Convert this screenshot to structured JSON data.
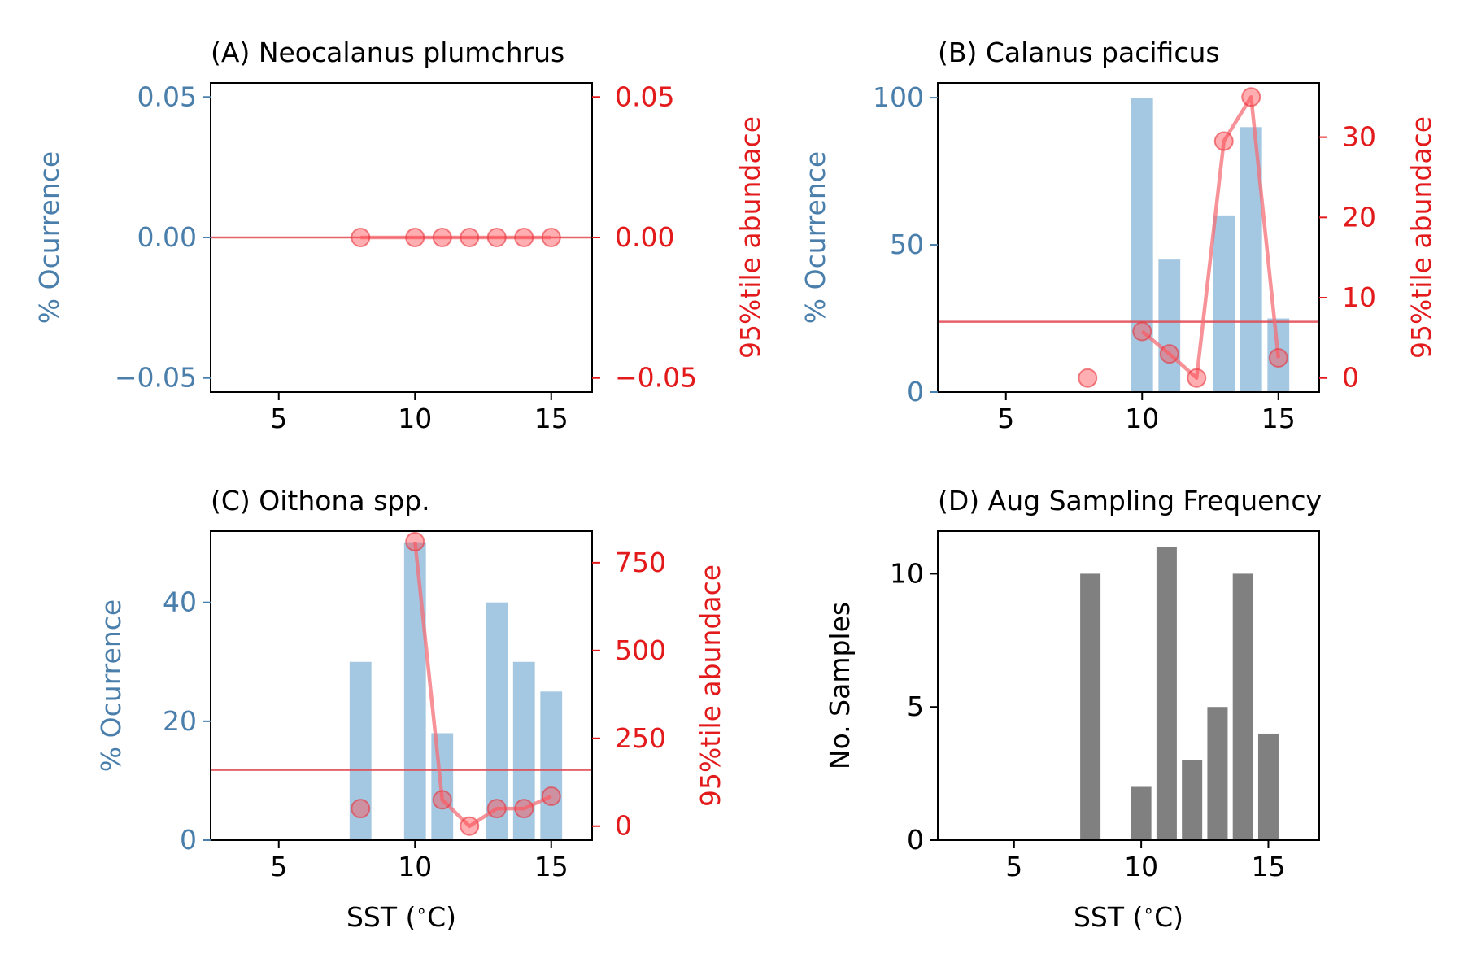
{
  "colors": {
    "left_axis": "#4a7eab",
    "right_axis": "#e31a1c",
    "bars": "#7fb0d5",
    "line": "#f46d75",
    "hline": "#e0474f",
    "gray_bars": "#808080",
    "frame": "#000000"
  },
  "chart_data": [
    {
      "type": "bar",
      "title": "(A) Neocalanus plumchrus",
      "ylabel_left": "% Ocurrence",
      "ylabel_right": "95%tile abundace",
      "xlabel": "",
      "xlim": [
        2.5,
        16.5
      ],
      "xticks": [
        5,
        10,
        15
      ],
      "ylim_left": [
        -0.055,
        0.055
      ],
      "yticks_left": [
        -0.05,
        0.0,
        0.05
      ],
      "ytick_labels_left": [
        "−0.05",
        "0.00",
        "0.05"
      ],
      "ylim_right": [
        -0.055,
        0.055
      ],
      "yticks_right": [
        -0.05,
        0.0,
        0.05
      ],
      "ytick_labels_right": [
        "−0.05",
        "0.00",
        "0.05"
      ],
      "bars": [],
      "line_x": [
        8,
        10,
        11,
        12,
        13,
        14,
        15
      ],
      "line_y": [
        0,
        0,
        0,
        0,
        0,
        0,
        0
      ],
      "hline_right": 0
    },
    {
      "type": "bar",
      "title": "(B) Calanus pacificus",
      "ylabel_left": "% Ocurrence",
      "ylabel_right": "95%tile abundace",
      "xlabel": "",
      "xlim": [
        2.5,
        16.5
      ],
      "xticks": [
        5,
        10,
        15
      ],
      "ylim_left": [
        0,
        105
      ],
      "yticks_left": [
        0,
        50,
        100
      ],
      "ytick_labels_left": [
        "0",
        "50",
        "100"
      ],
      "ylim_right": [
        -1.75,
        36.75
      ],
      "yticks_right": [
        0,
        10,
        20,
        30
      ],
      "ytick_labels_right": [
        "0",
        "10",
        "20",
        "30"
      ],
      "bars": [
        {
          "x": 10,
          "value": 100
        },
        {
          "x": 11,
          "value": 45
        },
        {
          "x": 13,
          "value": 60
        },
        {
          "x": 14,
          "value": 90
        },
        {
          "x": 15,
          "value": 25
        }
      ],
      "line_x": [
        8,
        10,
        11,
        12,
        13,
        14,
        15
      ],
      "line_y": [
        0,
        5.8,
        3,
        0,
        29.5,
        35,
        2.5
      ],
      "line_segments": [
        [
          1,
          2,
          3,
          4,
          5,
          6
        ]
      ],
      "hline_right": 7
    },
    {
      "type": "bar",
      "title": "(C) Oithona spp.",
      "ylabel_left": "% Ocurrence",
      "ylabel_right": "95%tile abundace",
      "xlabel": "SST ($^\\circ$C)",
      "xlim": [
        2.5,
        16.5
      ],
      "xticks": [
        5,
        10,
        15
      ],
      "ylim_left": [
        0,
        52
      ],
      "yticks_left": [
        0,
        20,
        40
      ],
      "ytick_labels_left": [
        "0",
        "20",
        "40"
      ],
      "ylim_right": [
        -40,
        840
      ],
      "yticks_right": [
        0,
        250,
        500,
        750
      ],
      "ytick_labels_right": [
        "0",
        "250",
        "500",
        "750"
      ],
      "bars": [
        {
          "x": 8,
          "value": 30
        },
        {
          "x": 10,
          "value": 50
        },
        {
          "x": 11,
          "value": 18
        },
        {
          "x": 13,
          "value": 40
        },
        {
          "x": 14,
          "value": 30
        },
        {
          "x": 15,
          "value": 25
        }
      ],
      "line_x": [
        8,
        10,
        11,
        12,
        13,
        14,
        15
      ],
      "line_y": [
        50,
        810,
        75,
        0,
        50,
        50,
        85
      ],
      "line_segments": [
        [
          1,
          2,
          3,
          4,
          5,
          6
        ]
      ],
      "hline_right": 160
    },
    {
      "type": "bar",
      "title": "(D) Aug Sampling Frequency",
      "ylabel_left": "No. Samples",
      "xlabel": "SST ($^\\circ$C)",
      "xlim": [
        2,
        17
      ],
      "xticks": [
        5,
        10,
        15
      ],
      "ylim_left": [
        0,
        11.6
      ],
      "yticks_left": [
        0,
        5,
        10
      ],
      "ytick_labels_left": [
        "0",
        "5",
        "10"
      ],
      "bars": [
        {
          "x": 8,
          "value": 10
        },
        {
          "x": 10,
          "value": 2
        },
        {
          "x": 11,
          "value": 11
        },
        {
          "x": 12,
          "value": 3
        },
        {
          "x": 13,
          "value": 5
        },
        {
          "x": 14,
          "value": 10
        },
        {
          "x": 15,
          "value": 4
        }
      ]
    }
  ]
}
